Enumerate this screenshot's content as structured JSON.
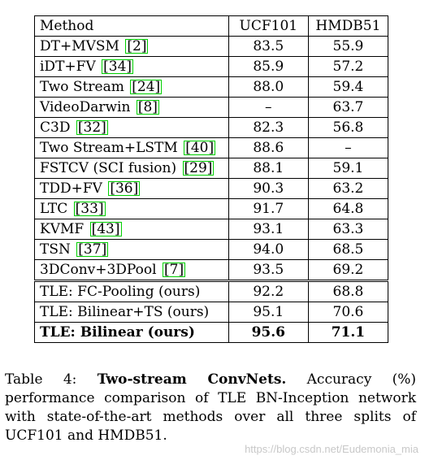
{
  "table": {
    "headers": [
      "Method",
      "UCF101",
      "HMDB51"
    ],
    "rows": [
      {
        "method": "DT+MVSM",
        "cite": "2",
        "ucf": "83.5",
        "hmdb": "55.9"
      },
      {
        "method": "iDT+FV",
        "cite": "34",
        "ucf": "85.9",
        "hmdb": "57.2"
      },
      {
        "method": "Two Stream",
        "cite": "24",
        "ucf": "88.0",
        "hmdb": "59.4"
      },
      {
        "method": "VideoDarwin",
        "cite": "8",
        "ucf": "–",
        "hmdb": "63.7"
      },
      {
        "method": "C3D",
        "cite": "32",
        "ucf": "82.3",
        "hmdb": "56.8"
      },
      {
        "method": "Two Stream+LSTM",
        "cite": "40",
        "ucf": "88.6",
        "hmdb": "–"
      },
      {
        "method": "FSTCV (SCI fusion)",
        "cite": "29",
        "ucf": "88.1",
        "hmdb": "59.1"
      },
      {
        "method": "TDD+FV",
        "cite": "36",
        "ucf": "90.3",
        "hmdb": "63.2"
      },
      {
        "method": "LTC",
        "cite": "33",
        "ucf": "91.7",
        "hmdb": "64.8"
      },
      {
        "method": "KVMF",
        "cite": "43",
        "ucf": "93.1",
        "hmdb": "63.3"
      },
      {
        "method": "TSN",
        "cite": "37",
        "ucf": "94.0",
        "hmdb": "68.5"
      },
      {
        "method": "3DConv+3DPool",
        "cite": "7",
        "ucf": "93.5",
        "hmdb": "69.2"
      }
    ],
    "ours": [
      {
        "method": "TLE: FC-Pooling (ours)",
        "ucf": "92.2",
        "hmdb": "68.8"
      },
      {
        "method": "TLE: Bilinear+TS (ours)",
        "ucf": "95.1",
        "hmdb": "70.6"
      },
      {
        "method": "TLE: Bilinear (ours)",
        "ucf": "95.6",
        "hmdb": "71.1"
      }
    ]
  },
  "caption": {
    "label": "Table 4:",
    "title": "Two-stream ConvNets.",
    "text": "Accuracy (%) performance comparison of TLE BN-Inception network with state-of-the-art methods over all three splits of UCF101 and HMDB51."
  },
  "watermark": "https://blog.csdn.net/Eudemonia_mia"
}
